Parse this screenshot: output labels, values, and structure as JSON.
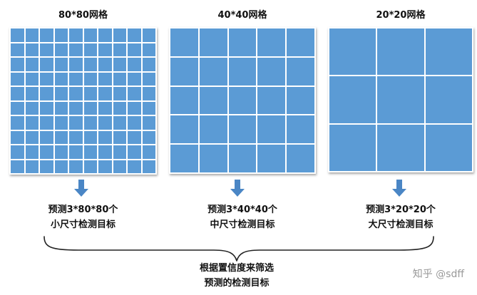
{
  "panels": [
    {
      "title": "80*80网格",
      "grid": 10,
      "caption_line1": "预测3*80*80个",
      "caption_line2": "小尺寸检测目标"
    },
    {
      "title": "40*40网格",
      "grid": 5,
      "caption_line1": "预测3*40*40个",
      "caption_line2": "中尺寸检测目标"
    },
    {
      "title": "20*20网格",
      "grid": 3,
      "caption_line1": "预测3*20*20个",
      "caption_line2": "大尺寸检测目标"
    }
  ],
  "summary": {
    "line1": "根据置信度来筛选",
    "line2": "预测的检测目标"
  },
  "watermark": "知乎 @sdff",
  "colors": {
    "cell_fill": "#5b9bd5",
    "arrow": "#4a86c5",
    "grid_line": "#ffffff"
  }
}
